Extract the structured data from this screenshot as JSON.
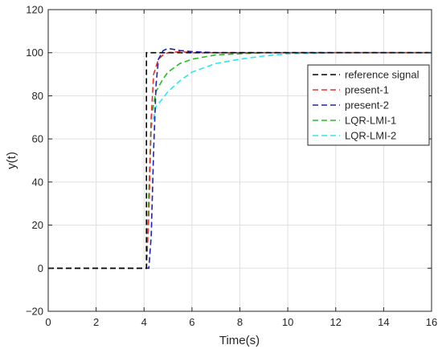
{
  "chart_data": {
    "type": "line",
    "xlabel": "Time(s)",
    "ylabel": "y(t)",
    "xlim": [
      0,
      16
    ],
    "ylim": [
      -20,
      120
    ],
    "xticks": [
      0,
      2,
      4,
      6,
      8,
      10,
      12,
      14,
      16
    ],
    "yticks": [
      -20,
      0,
      20,
      40,
      60,
      80,
      100,
      120
    ],
    "grid": true,
    "legend_position": "right",
    "series": [
      {
        "name": "reference signal",
        "color": "#000000",
        "dash": "dashed",
        "x": [
          0,
          4.1,
          4.1,
          16
        ],
        "y": [
          0,
          0,
          100,
          100
        ]
      },
      {
        "name": "present-1",
        "color": "#e8322a",
        "dash": "dashed",
        "x": [
          0,
          1,
          2,
          3,
          4,
          4.1,
          4.2,
          4.3,
          4.4,
          4.6,
          4.8,
          5,
          5.5,
          6,
          7,
          8,
          10,
          12,
          14,
          16
        ],
        "y": [
          0,
          0,
          0,
          0,
          0,
          0,
          25,
          70,
          90,
          97,
          99,
          100,
          100.5,
          100,
          100,
          100,
          100,
          100,
          100,
          100
        ]
      },
      {
        "name": "present-2",
        "color": "#1f24b4",
        "dash": "dashed",
        "x": [
          0,
          1,
          2,
          3,
          4,
          4.2,
          4.3,
          4.4,
          4.5,
          4.6,
          4.8,
          5,
          5.5,
          6,
          7,
          8,
          10,
          12,
          14,
          16
        ],
        "y": [
          0,
          0,
          0,
          0,
          0,
          0,
          15,
          55,
          85,
          97,
          101,
          102,
          101,
          100.5,
          100,
          100,
          100,
          100,
          100,
          100
        ]
      },
      {
        "name": "LQR-LMI-1",
        "color": "#22c022",
        "dash": "dashed",
        "x": [
          0,
          1,
          2,
          3,
          4,
          4.1,
          4.2,
          4.3,
          4.5,
          4.8,
          5,
          5.5,
          6,
          7,
          8,
          9,
          10,
          12,
          14,
          16
        ],
        "y": [
          0,
          0,
          0,
          0,
          0,
          0,
          35,
          70,
          82,
          88,
          91,
          95,
          97,
          99,
          99.5,
          100,
          100,
          100,
          100,
          100
        ]
      },
      {
        "name": "LQR-LMI-2",
        "color": "#2ee6ef",
        "dash": "dashed",
        "x": [
          0,
          1,
          2,
          3,
          4,
          4.1,
          4.2,
          4.3,
          4.5,
          4.8,
          5,
          5.5,
          6,
          7,
          8,
          9,
          10,
          12,
          14,
          16
        ],
        "y": [
          0,
          0,
          0,
          0,
          0,
          0,
          30,
          65,
          75,
          79,
          82,
          87,
          91,
          95,
          97,
          98.5,
          99.5,
          100,
          100,
          100
        ]
      }
    ]
  }
}
